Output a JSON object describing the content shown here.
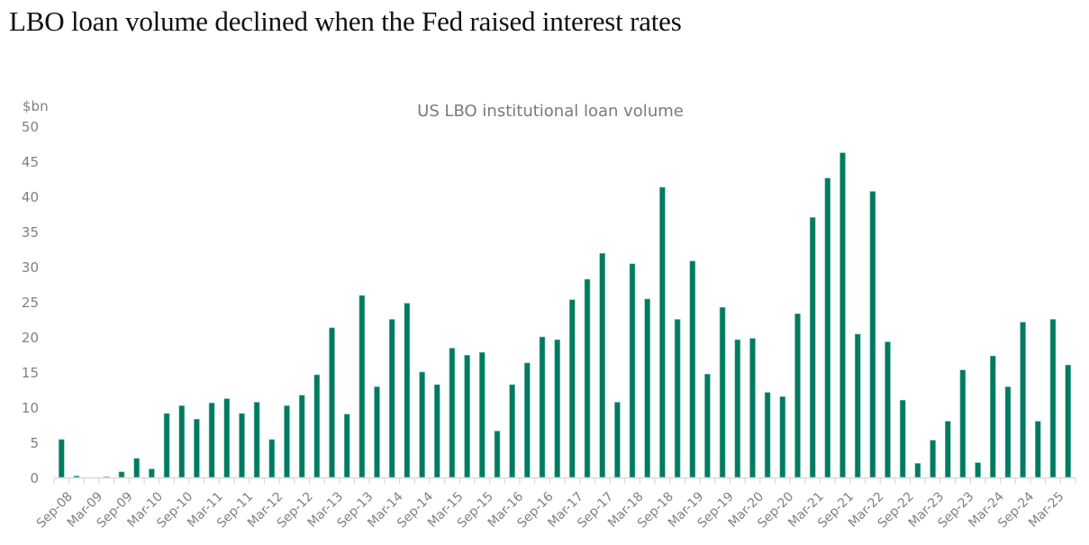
{
  "headline": "LBO loan volume declined when the Fed raised interest rates",
  "colors": {
    "bar": "#007A61",
    "bar_edge": "#7cc4b3",
    "axis": "#d9d9d9",
    "text": "#808080"
  },
  "chart_data": {
    "type": "bar",
    "title": "US LBO institutional loan volume",
    "xlabel": "",
    "ylabel": "$bn",
    "ylim": [
      0,
      50
    ],
    "yticks": [
      0,
      5,
      10,
      15,
      20,
      25,
      30,
      35,
      40,
      45,
      50
    ],
    "grid": false,
    "legend": "none",
    "categories": [
      "Sep-08",
      "Dec-08",
      "Mar-09",
      "Jun-09",
      "Sep-09",
      "Dec-09",
      "Mar-10",
      "Jun-10",
      "Sep-10",
      "Dec-10",
      "Mar-11",
      "Jun-11",
      "Sep-11",
      "Dec-11",
      "Mar-12",
      "Jun-12",
      "Sep-12",
      "Dec-12",
      "Mar-13",
      "Jun-13",
      "Sep-13",
      "Dec-13",
      "Mar-14",
      "Jun-14",
      "Sep-14",
      "Dec-14",
      "Mar-15",
      "Jun-15",
      "Sep-15",
      "Dec-15",
      "Mar-16",
      "Jun-16",
      "Sep-16",
      "Dec-16",
      "Mar-17",
      "Jun-17",
      "Sep-17",
      "Dec-17",
      "Mar-18",
      "Jun-18",
      "Sep-18",
      "Dec-18",
      "Mar-19",
      "Jun-19",
      "Sep-19",
      "Dec-19",
      "Mar-20",
      "Jun-20",
      "Sep-20",
      "Dec-20",
      "Mar-21",
      "Jun-21",
      "Sep-21",
      "Dec-21",
      "Mar-22",
      "Jun-22",
      "Sep-22",
      "Dec-22",
      "Mar-23",
      "Jun-23",
      "Sep-23",
      "Dec-23",
      "Mar-24",
      "Jun-24",
      "Sep-24",
      "Dec-24",
      "Mar-25",
      "Jun-25"
    ],
    "tick_labels": [
      "Sep-08",
      "Mar-09",
      "Sep-09",
      "Mar-10",
      "Sep-10",
      "Mar-11",
      "Sep-11",
      "Mar-12",
      "Sep-12",
      "Mar-13",
      "Sep-13",
      "Mar-14",
      "Sep-14",
      "Mar-15",
      "Sep-15",
      "Mar-16",
      "Sep-16",
      "Mar-17",
      "Sep-17",
      "Mar-18",
      "Sep-18",
      "Mar-19",
      "Sep-19",
      "Mar-20",
      "Sep-20",
      "Mar-21",
      "Sep-21",
      "Mar-22",
      "Sep-22",
      "Mar-23",
      "Sep-23",
      "Mar-24",
      "Sep-24",
      "Mar-25"
    ],
    "values": [
      5.4,
      0.2,
      0.0,
      0.1,
      0.8,
      2.7,
      1.2,
      9.1,
      10.2,
      8.3,
      10.6,
      11.2,
      9.1,
      10.7,
      5.4,
      10.2,
      11.7,
      14.6,
      21.3,
      9.0,
      25.9,
      12.9,
      22.5,
      24.8,
      15.0,
      13.2,
      18.4,
      17.4,
      17.8,
      6.6,
      13.2,
      16.3,
      20.0,
      19.6,
      25.3,
      28.2,
      31.9,
      10.7,
      30.4,
      25.4,
      41.3,
      22.5,
      30.8,
      14.7,
      24.2,
      19.6,
      19.8,
      12.1,
      11.5,
      23.3,
      37.0,
      42.6,
      46.2,
      20.4,
      40.7,
      19.3,
      11.0,
      2.0,
      5.3,
      8.0,
      15.3,
      2.1,
      17.3,
      12.9,
      22.1,
      8.0,
      22.5,
      16.0
    ]
  }
}
